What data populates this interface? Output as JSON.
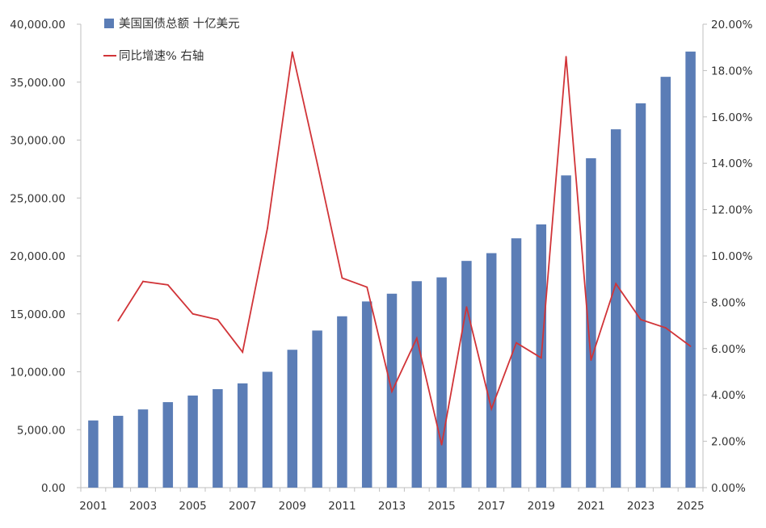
{
  "chart_data": {
    "type": "bar",
    "categories": [
      "2001",
      "2002",
      "2003",
      "2004",
      "2005",
      "2006",
      "2007",
      "2008",
      "2009",
      "2010",
      "2011",
      "2012",
      "2013",
      "2014",
      "2015",
      "2016",
      "2017",
      "2018",
      "2019",
      "2020",
      "2021",
      "2022",
      "2023",
      "2024",
      "2025"
    ],
    "x_tick_labels": [
      "2001",
      "2003",
      "2005",
      "2007",
      "2009",
      "2011",
      "2013",
      "2015",
      "2017",
      "2019",
      "2021",
      "2023",
      "2025"
    ],
    "series": [
      {
        "name": "美国国债总额 十亿美元",
        "type": "bar",
        "axis": "left",
        "color": "#5B7DB6",
        "values": [
          5800,
          6200,
          6750,
          7380,
          7950,
          8500,
          9000,
          10000,
          11900,
          13560,
          14790,
          16070,
          16740,
          17820,
          18150,
          19570,
          20240,
          21520,
          22720,
          26950,
          28430,
          30930,
          33170,
          35460,
          37640
        ]
      },
      {
        "name": "同比增速% 右轴",
        "type": "line",
        "axis": "right",
        "color": "#D13438",
        "values": [
          null,
          7.2,
          8.9,
          8.75,
          7.5,
          7.25,
          5.85,
          11.2,
          18.8,
          14.0,
          9.05,
          8.65,
          4.15,
          6.45,
          1.85,
          7.8,
          3.4,
          6.25,
          5.6,
          18.6,
          5.5,
          8.8,
          7.25,
          6.9,
          6.1
        ]
      }
    ],
    "ylim_left": [
      0,
      40000
    ],
    "ylim_right": [
      0,
      20
    ],
    "left_ticks": [
      {
        "value": 0,
        "label": "0.00"
      },
      {
        "value": 5000,
        "label": "5,000.00"
      },
      {
        "value": 10000,
        "label": "10,000.00"
      },
      {
        "value": 15000,
        "label": "15,000.00"
      },
      {
        "value": 20000,
        "label": "20,000.00"
      },
      {
        "value": 25000,
        "label": "25,000.00"
      },
      {
        "value": 30000,
        "label": "30,000.00"
      },
      {
        "value": 35000,
        "label": "35,000.00"
      },
      {
        "value": 40000,
        "label": "40,000.00"
      }
    ],
    "right_ticks": [
      {
        "value": 0,
        "label": "0.00%"
      },
      {
        "value": 2,
        "label": "2.00%"
      },
      {
        "value": 4,
        "label": "4.00%"
      },
      {
        "value": 6,
        "label": "6.00%"
      },
      {
        "value": 8,
        "label": "8.00%"
      },
      {
        "value": 10,
        "label": "10.00%"
      },
      {
        "value": 12,
        "label": "12.00%"
      },
      {
        "value": 14,
        "label": "14.00%"
      },
      {
        "value": 16,
        "label": "16.00%"
      },
      {
        "value": 18,
        "label": "18.00%"
      },
      {
        "value": 20,
        "label": "20.00%"
      }
    ],
    "grid": false,
    "legend_position": "top-left"
  }
}
